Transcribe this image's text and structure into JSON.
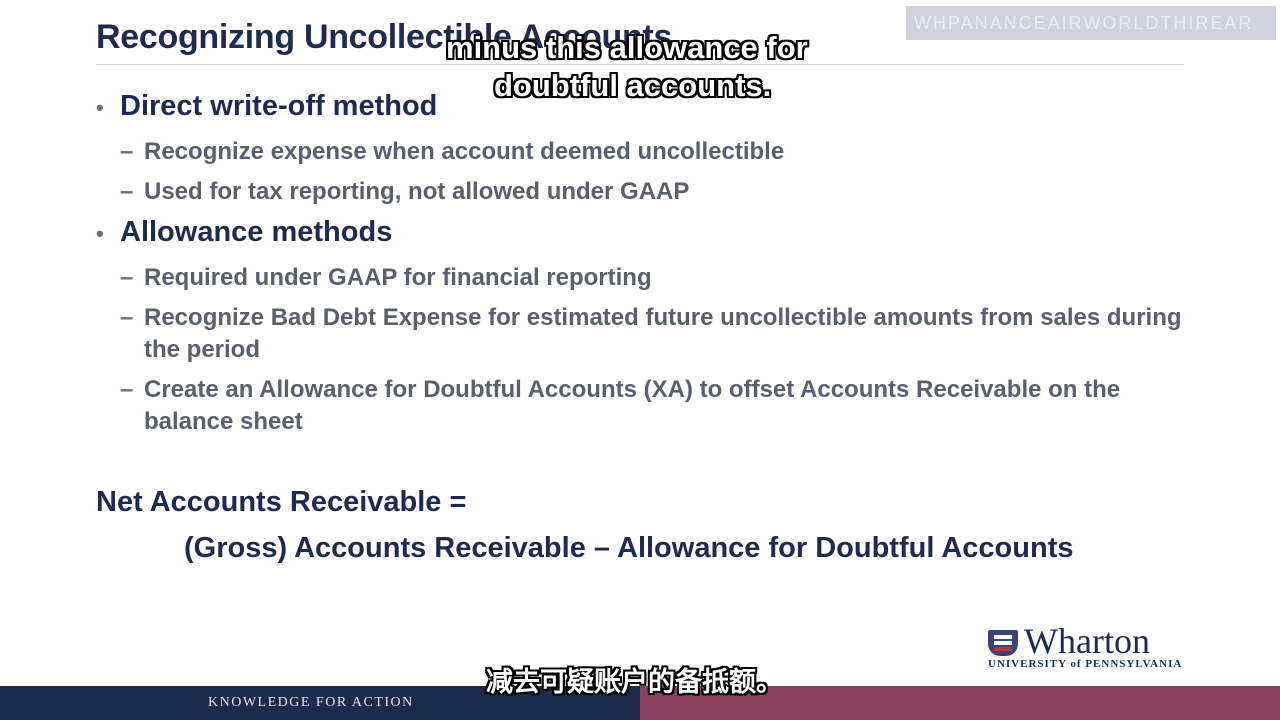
{
  "slide": {
    "title": "Recognizing Uncollectible Accounts",
    "watermark": "WHPANANCEAIRWORLDTHIREAR",
    "bullets": [
      {
        "label": "Direct write-off method",
        "subs": [
          "Recognize expense when account deemed uncollectible",
          "Used for tax reporting, not allowed under GAAP"
        ]
      },
      {
        "label": "Allowance methods",
        "subs": [
          "Required under GAAP for financial reporting",
          "Recognize Bad Debt Expense for estimated future uncollectible amounts from sales during the period",
          "Create an Allowance for Doubtful Accounts (XA) to offset Accounts Receivable on the balance sheet"
        ]
      }
    ],
    "formula": {
      "line1": "Net Accounts Receivable =",
      "line2": "(Gross) Accounts Receivable – Allowance for Doubtful Accounts"
    },
    "logo": {
      "name": "Wharton",
      "university": "UNIVERSITY of PENNSYLVANIA"
    },
    "footer": {
      "tagline": "KNOWLEDGE FOR ACTION",
      "left_color": "#1e2a4d",
      "right_color": "#8a4060"
    },
    "bullet_char": "•",
    "dash_char": "–"
  },
  "subtitles": {
    "english_line1": "minus this allowance for",
    "english_line2": "doubtful accounts.",
    "chinese": "减去可疑账户的备抵额。"
  },
  "colors": {
    "navy": "#1f2a4f",
    "gray_text": "#5a5f70"
  }
}
